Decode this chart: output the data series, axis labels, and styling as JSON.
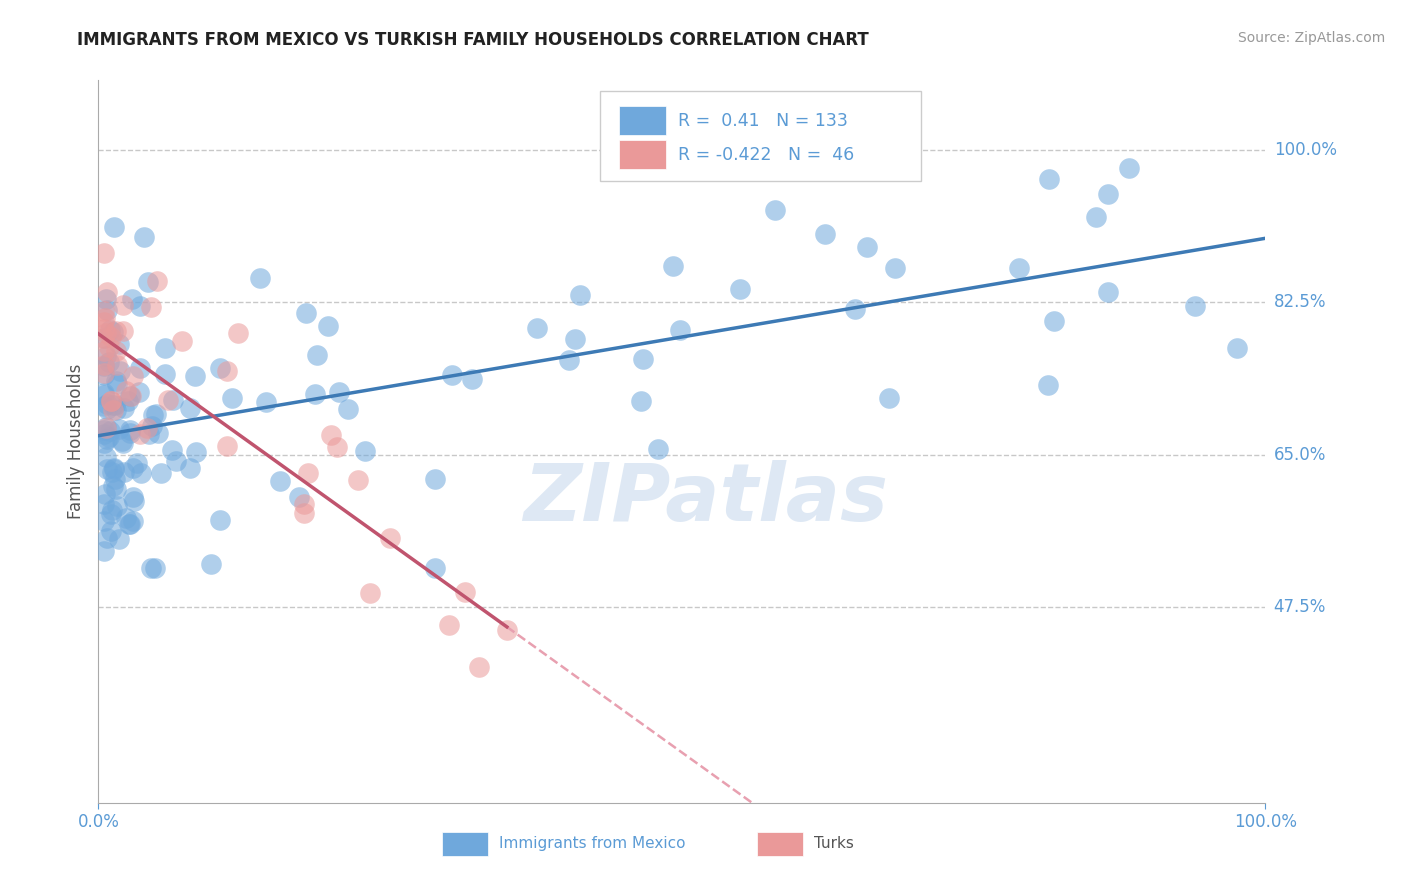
{
  "title": "IMMIGRANTS FROM MEXICO VS TURKISH FAMILY HOUSEHOLDS CORRELATION CHART",
  "source": "Source: ZipAtlas.com",
  "ylabel": "Family Households",
  "watermark": "ZIPatlas",
  "xlim": [
    0.0,
    1.0
  ],
  "ylim": [
    0.25,
    1.08
  ],
  "yticks": [
    0.475,
    0.65,
    0.825,
    1.0
  ],
  "ytick_labels": [
    "47.5%",
    "65.0%",
    "82.5%",
    "100.0%"
  ],
  "blue_R": 0.41,
  "blue_N": 133,
  "pink_R": -0.422,
  "pink_N": 46,
  "legend_label_blue": "Immigrants from Mexico",
  "legend_label_pink": "Turks",
  "blue_color": "#6fa8dc",
  "pink_color": "#ea9999",
  "blue_line_color": "#3d7ab5",
  "pink_line_color": "#c0546e",
  "pink_dash_color": "#e8a0b0",
  "grid_color": "#bbbbbb",
  "title_color": "#222222",
  "axis_label_color": "#555555",
  "tick_label_color": "#5b9bd5",
  "source_color": "#999999",
  "watermark_color": "#d0dff0"
}
